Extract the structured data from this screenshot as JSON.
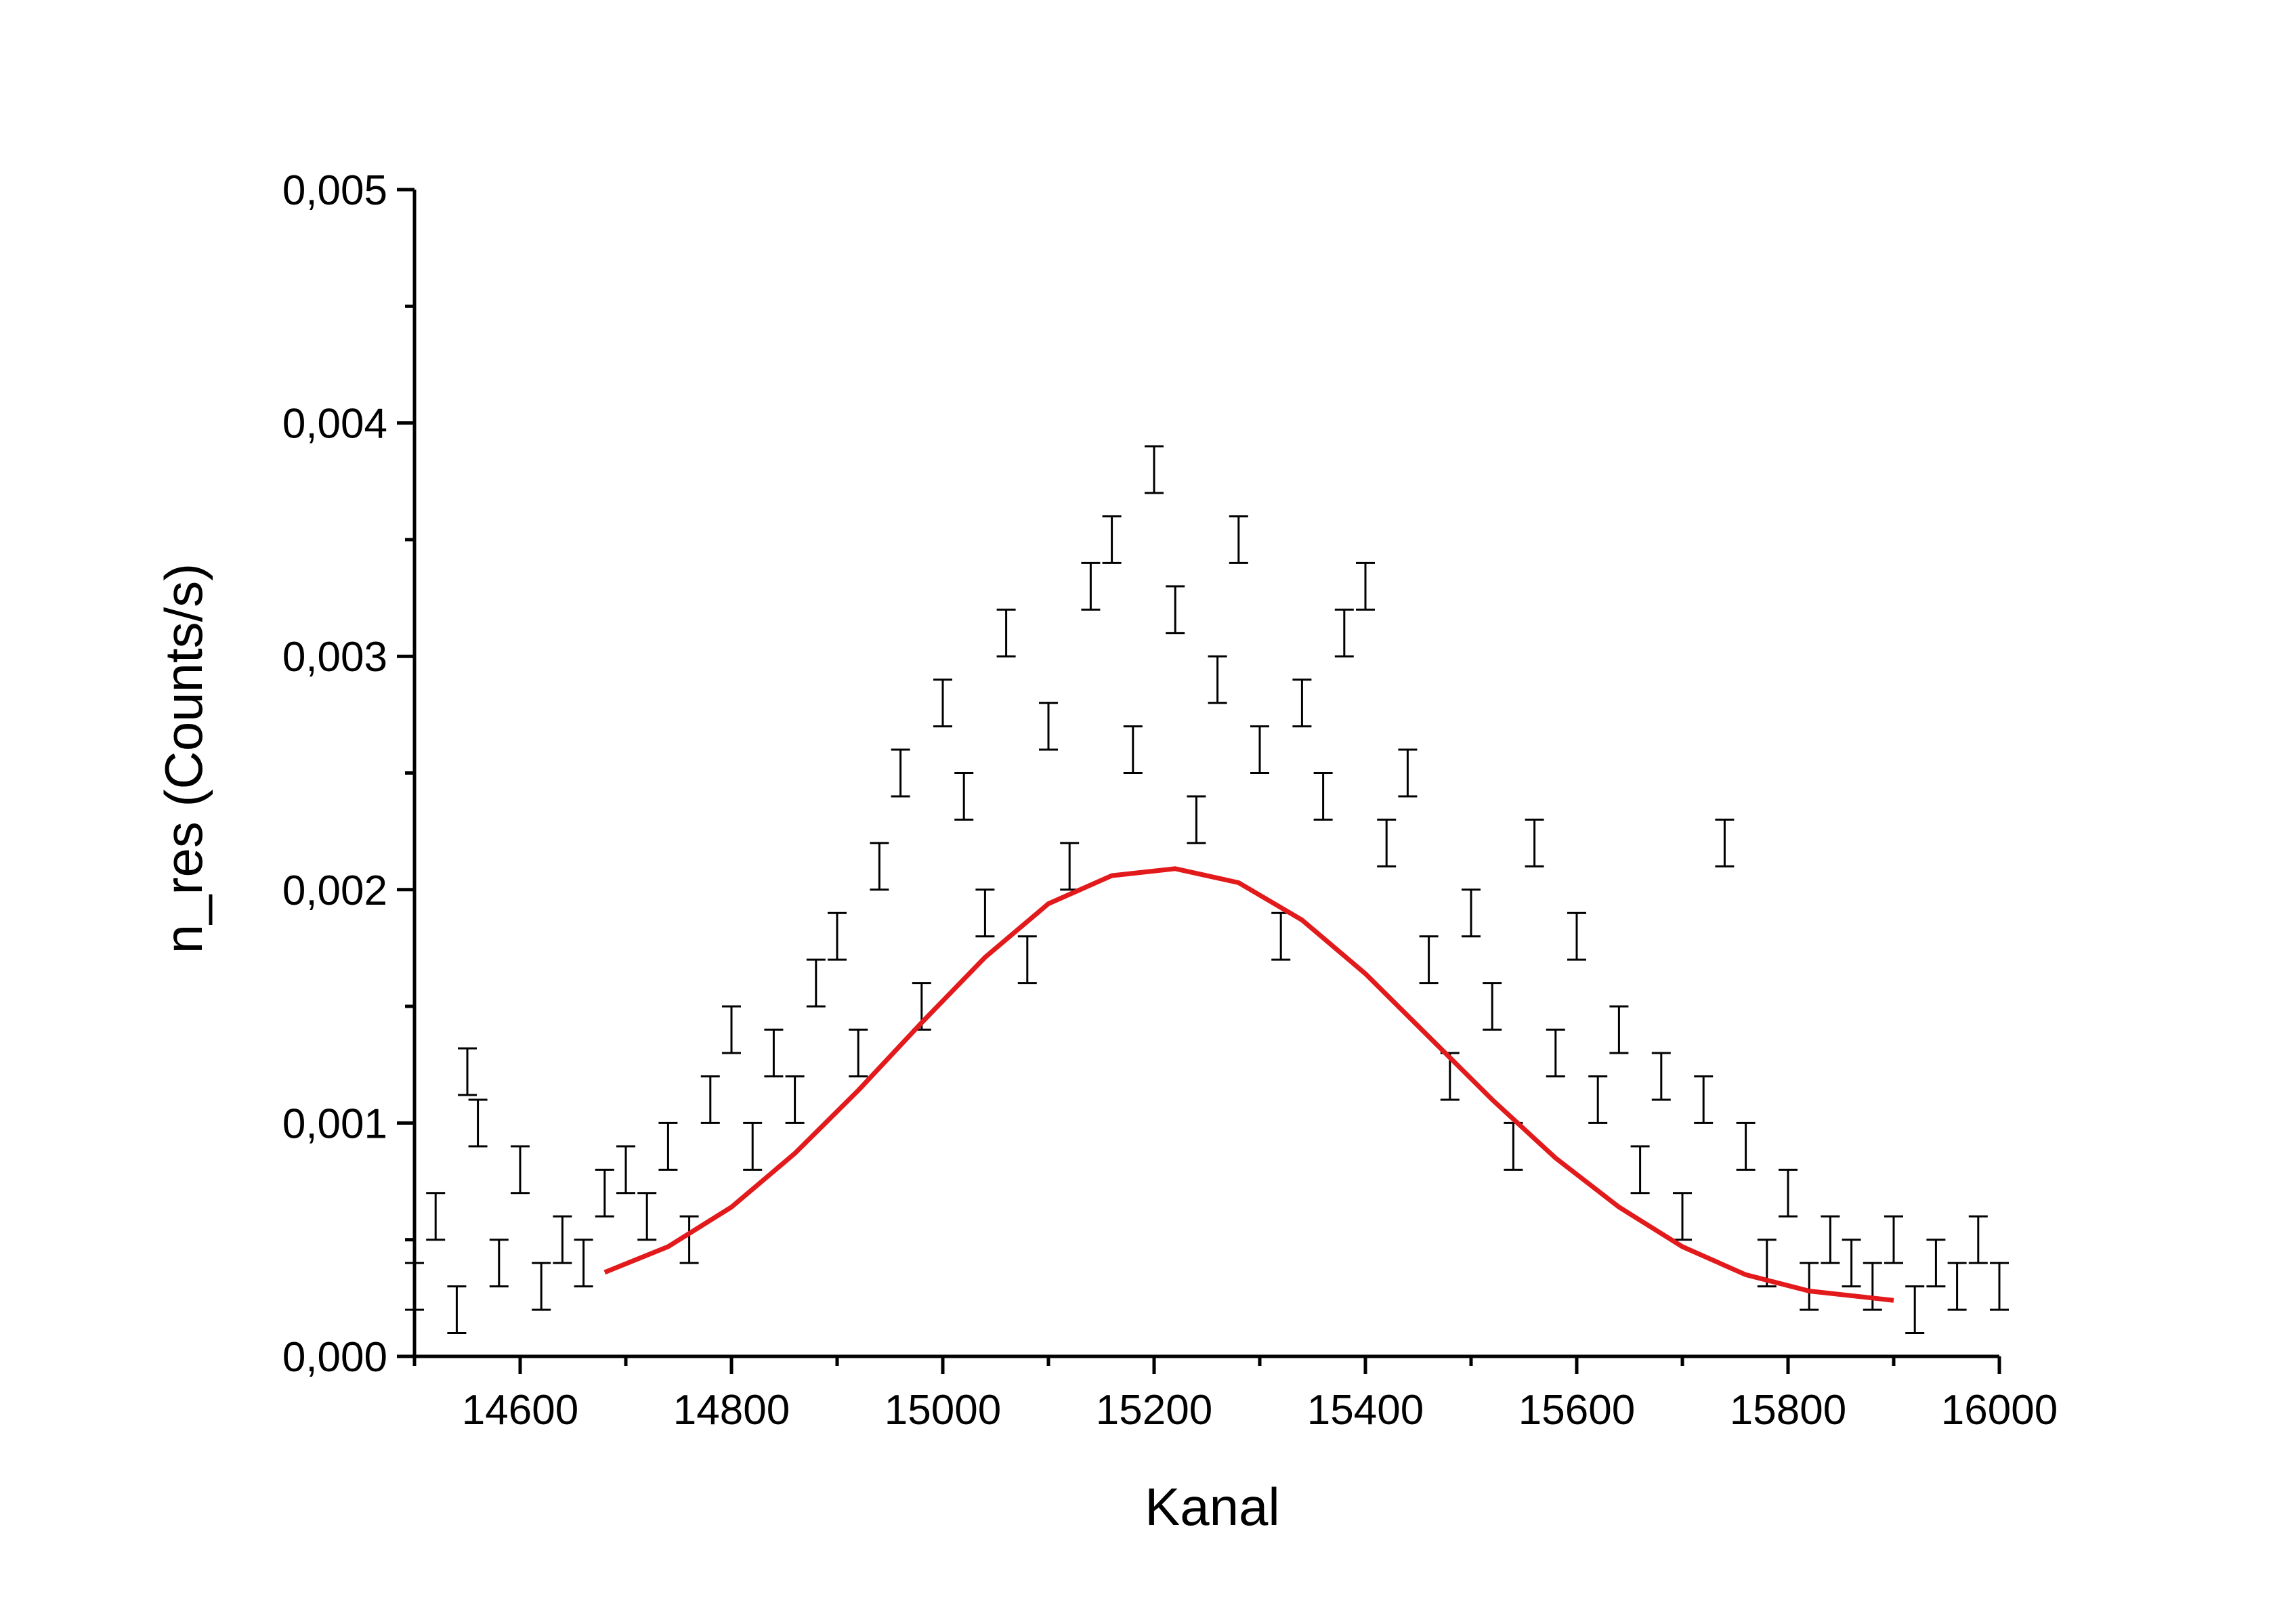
{
  "chart_data": {
    "type": "scatter",
    "title": "",
    "xlabel": "Kanal",
    "ylabel": "n_res (Counts/s)",
    "xlim": [
      14500,
      16000
    ],
    "ylim": [
      0,
      0.005
    ],
    "x_ticks": [
      14600,
      14800,
      15000,
      15200,
      15400,
      15600,
      15800,
      16000
    ],
    "x_tick_labels": [
      "14600",
      "14800",
      "15000",
      "15200",
      "15400",
      "15600",
      "15800",
      "16000"
    ],
    "y_ticks": [
      0,
      0.001,
      0.002,
      0.003,
      0.004,
      0.005
    ],
    "y_tick_labels": [
      "0,000",
      "0,001",
      "0,002",
      "0,003",
      "0,004",
      "0,005"
    ],
    "grid": false,
    "series": [
      {
        "kind": "points_with_error_bars",
        "color": "#000000",
        "x": [
          14500,
          14520,
          14540,
          14550,
          14560,
          14580,
          14600,
          14620,
          14640,
          14660,
          14680,
          14700,
          14720,
          14740,
          14760,
          14780,
          14800,
          14820,
          14840,
          14860,
          14880,
          14900,
          14920,
          14940,
          14960,
          14980,
          15000,
          15020,
          15040,
          15060,
          15080,
          15100,
          15120,
          15140,
          15160,
          15180,
          15200,
          15220,
          15240,
          15260,
          15280,
          15300,
          15320,
          15340,
          15360,
          15380,
          15400,
          15420,
          15440,
          15460,
          15480,
          15500,
          15520,
          15540,
          15560,
          15580,
          15600,
          15620,
          15640,
          15660,
          15680,
          15700,
          15720,
          15740,
          15760,
          15780,
          15800,
          15820,
          15840,
          15860,
          15880,
          15900,
          15920,
          15940,
          15960,
          15980,
          16000
        ],
        "y": [
          0.0003,
          0.0006,
          0.0002,
          0.00122,
          0.001,
          0.0004,
          0.0008,
          0.0003,
          0.0005,
          0.0004,
          0.0007,
          0.0008,
          0.0006,
          0.0009,
          0.0005,
          0.0011,
          0.0014,
          0.0009,
          0.0013,
          0.0011,
          0.0016,
          0.0018,
          0.0013,
          0.0021,
          0.0025,
          0.0015,
          0.0028,
          0.0024,
          0.0019,
          0.0031,
          0.0017,
          0.0027,
          0.0021,
          0.0033,
          0.0035,
          0.0026,
          0.0038,
          0.0032,
          0.0023,
          0.0029,
          0.0035,
          0.0026,
          0.0018,
          0.0028,
          0.0024,
          0.0031,
          0.0033,
          0.0022,
          0.0025,
          0.0017,
          0.0012,
          0.0019,
          0.0015,
          0.0009,
          0.0022,
          0.0013,
          0.0018,
          0.0011,
          0.0014,
          0.0008,
          0.0012,
          0.0006,
          0.0011,
          0.0022,
          0.0009,
          0.0004,
          0.0007,
          0.0003,
          0.0005,
          0.0004,
          0.0003,
          0.0005,
          0.0002,
          0.0004,
          0.0003,
          0.0005,
          0.0003
        ],
        "error": [
          0.0001,
          0.0001,
          0.0001,
          0.0001,
          0.0001,
          0.0001,
          0.0001,
          0.0001,
          0.0001,
          0.0001,
          0.0001,
          0.0001,
          0.0001,
          0.0001,
          0.0001,
          0.0001,
          0.0001,
          0.0001,
          0.0001,
          0.0001,
          0.0001,
          0.0001,
          0.0001,
          0.0001,
          0.0001,
          0.0001,
          0.0001,
          0.0001,
          0.0001,
          0.0001,
          0.0001,
          0.0001,
          0.0001,
          0.0001,
          0.0001,
          0.0001,
          0.0001,
          0.0001,
          0.0001,
          0.0001,
          0.0001,
          0.0001,
          0.0001,
          0.0001,
          0.0001,
          0.0001,
          0.0001,
          0.0001,
          0.0001,
          0.0001,
          0.0001,
          0.0001,
          0.0001,
          0.0001,
          0.0001,
          0.0001,
          0.0001,
          0.0001,
          0.0001,
          0.0001,
          0.0001,
          0.0001,
          0.0001,
          0.0001,
          0.0001,
          0.0001,
          0.0001,
          0.0001,
          0.0001,
          0.0001,
          0.0001,
          0.0001,
          0.0001,
          0.0001,
          0.0001,
          0.0001,
          0.0001
        ]
      },
      {
        "kind": "line",
        "color": "#e31a1c",
        "x": [
          14680,
          14740,
          14800,
          14860,
          14920,
          14980,
          15040,
          15100,
          15160,
          15220,
          15280,
          15340,
          15400,
          15460,
          15520,
          15580,
          15640,
          15700,
          15760,
          15820,
          15880,
          15900
        ],
        "y": [
          0.00036,
          0.00047,
          0.00064,
          0.00087,
          0.00114,
          0.00143,
          0.00171,
          0.00194,
          0.00206,
          0.00209,
          0.00203,
          0.00187,
          0.00164,
          0.00137,
          0.0011,
          0.00085,
          0.00064,
          0.00047,
          0.00035,
          0.00028,
          0.00025,
          0.00024
        ]
      }
    ]
  }
}
